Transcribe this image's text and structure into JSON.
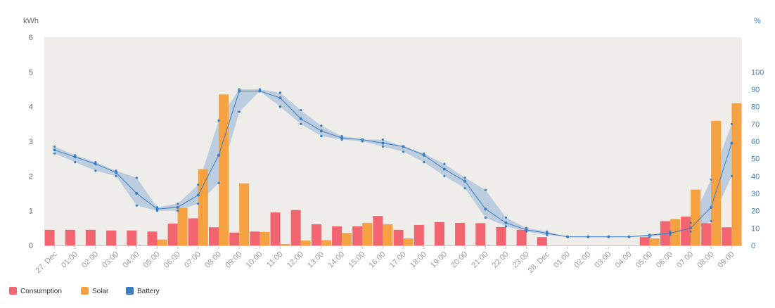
{
  "chart_data": {
    "type": "bar",
    "left_unit_label": "kWh",
    "right_unit_label": "%",
    "y_left_range": [
      0,
      6
    ],
    "y_left_ticks": [
      "0",
      "1",
      "2",
      "3",
      "4",
      "5",
      "6"
    ],
    "y_right_range": [
      0,
      120
    ],
    "y_right_ticks": [
      "0",
      "10",
      "20",
      "30",
      "40",
      "50",
      "60",
      "70",
      "80",
      "90",
      "100"
    ],
    "categories": [
      "27. Dec",
      "01:00",
      "02:00",
      "03:00",
      "04:00",
      "05:00",
      "06:00",
      "07:00",
      "08:00",
      "09:00",
      "10:00",
      "11:00",
      "12:00",
      "13:00",
      "14:00",
      "15:00",
      "16:00",
      "17:00",
      "18:00",
      "19:00",
      "20:00",
      "21:00",
      "22:00",
      "23:00",
      "28. Dec",
      "01:00",
      "02:00",
      "03:00",
      "04:00",
      "05:00",
      "06:00",
      "07:00",
      "08:00",
      "09:00"
    ],
    "series": [
      {
        "name": "Consumption",
        "type": "bar",
        "axis": "left",
        "color": "#f2646f",
        "values": [
          0.45,
          0.45,
          0.45,
          0.43,
          0.43,
          0.4,
          0.63,
          0.78,
          0.52,
          0.37,
          0.4,
          0.95,
          1.02,
          0.61,
          0.55,
          0.55,
          0.85,
          0.45,
          0.59,
          0.67,
          0.65,
          0.64,
          0.53,
          0.45,
          0.24,
          0,
          0,
          0,
          0,
          0.24,
          0.7,
          0.83,
          0.64,
          0.52
        ]
      },
      {
        "name": "Solar",
        "type": "bar",
        "axis": "left",
        "color": "#f6a142",
        "values": [
          0,
          0,
          0,
          0,
          0,
          0.17,
          1.08,
          2.2,
          4.35,
          1.79,
          0.39,
          0.04,
          0.14,
          0.15,
          0.36,
          0.65,
          0.61,
          0.2,
          0,
          0,
          0,
          0,
          0,
          0,
          0,
          0,
          0,
          0,
          0,
          0.2,
          0.76,
          1.61,
          3.59,
          4.1
        ]
      },
      {
        "name": "Battery",
        "type": "line",
        "axis": "right",
        "color": "#3a7ebf",
        "values": [
          55,
          51,
          47,
          42,
          30,
          21,
          22,
          29,
          52,
          89,
          89,
          85,
          73,
          66,
          62,
          61,
          59,
          57,
          52,
          44,
          37,
          21,
          13,
          9,
          7,
          5,
          5,
          5,
          5,
          6,
          7,
          10,
          22,
          59
        ],
        "min": [
          53,
          48,
          43,
          40,
          23,
          20,
          20,
          24,
          36,
          77,
          89,
          80,
          70,
          63,
          61,
          60,
          57,
          54,
          48,
          40,
          33,
          16,
          11,
          8,
          6,
          5,
          5,
          5,
          5,
          5,
          6,
          8,
          14,
          40
        ],
        "max": [
          57,
          52,
          48,
          43,
          39,
          22,
          24,
          35,
          72,
          90,
          90,
          88,
          78,
          69,
          63,
          61,
          61,
          57,
          53,
          47,
          39,
          32,
          16,
          10,
          8,
          5,
          5,
          5,
          5,
          6,
          8,
          13,
          38,
          70
        ]
      }
    ],
    "grid": false,
    "legend_position": "bottom-left"
  }
}
